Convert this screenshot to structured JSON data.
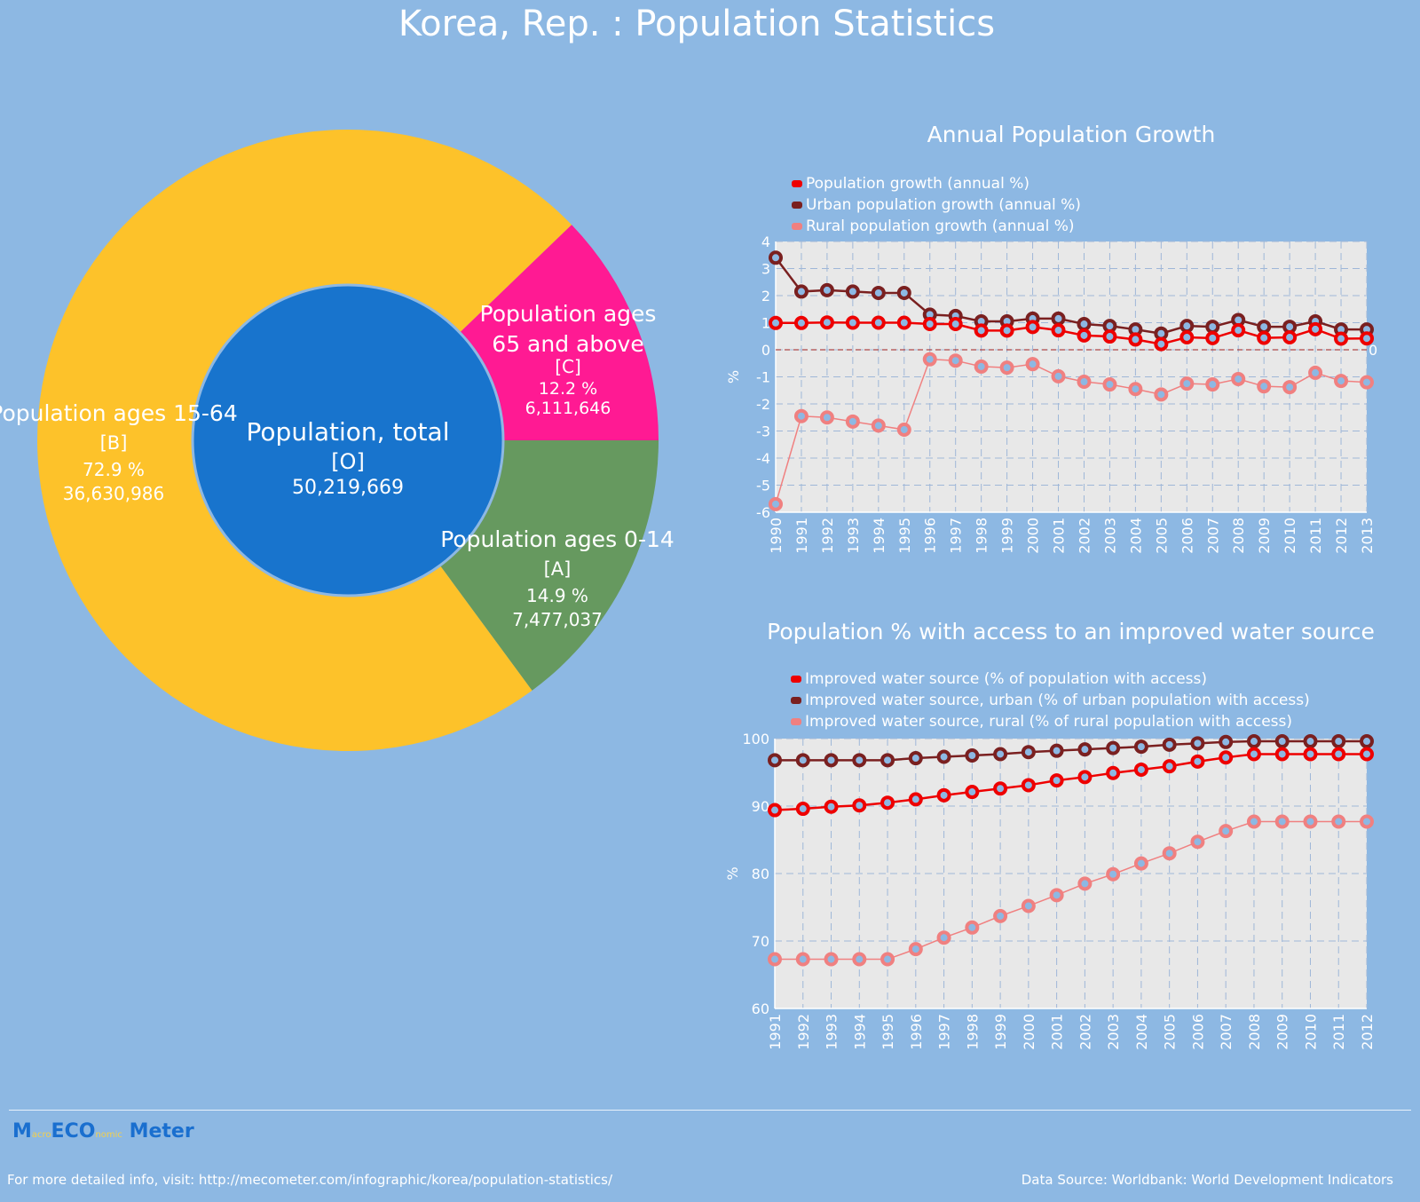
{
  "title": "Korea, Rep. : Population Statistics",
  "colors": {
    "background": "#8db8e3",
    "ages_15_64": "#fdc22a",
    "ages_65_above": "#ff1a93",
    "ages_0_14": "#66995f",
    "total": "#1874cd",
    "series1": "#ee0000",
    "series2": "#7a2020",
    "series3": "#f08080",
    "plot_bg": "#e8e8e8"
  },
  "chart_data": [
    {
      "type": "pie",
      "variant": "donut",
      "center": {
        "label": "Population, total",
        "code": "[O]",
        "value_text": "50,219,669",
        "value": 50219669
      },
      "slices": [
        {
          "label": "Population ages 0-14",
          "code": "[A]",
          "percent": 14.9,
          "percent_text": "14.9 %",
          "value_text": "7,477,037",
          "value": 7477037
        },
        {
          "label": "Population ages 15-64",
          "code": "[B]",
          "percent": 72.9,
          "percent_text": "72.9 %",
          "value_text": "36,630,986",
          "value": 36630986
        },
        {
          "label_lines": [
            "Population ages",
            "65 and above"
          ],
          "code": "[C]",
          "percent": 12.2,
          "percent_text": "12.2 %",
          "value_text": "6,111,646",
          "value": 6111646
        }
      ]
    },
    {
      "type": "line",
      "title": "Annual Population Growth",
      "ylabel": "%",
      "ylim": [
        -6,
        4
      ],
      "yticks": [
        "4",
        "3",
        "2",
        "1",
        "0",
        "-1",
        "-2",
        "-3",
        "-4",
        "-5",
        "-6"
      ],
      "zero_label": "0",
      "legend_placement": "top-left",
      "grid": true,
      "x": [
        "1990",
        "1991",
        "1992",
        "1993",
        "1994",
        "1995",
        "1996",
        "1997",
        "1998",
        "1999",
        "2000",
        "2001",
        "2002",
        "2003",
        "2004",
        "2005",
        "2006",
        "2007",
        "2008",
        "2009",
        "2010",
        "2011",
        "2012",
        "2013"
      ],
      "series": [
        {
          "name": "Population growth (annual %)",
          "values": [
            0.99,
            0.99,
            1.01,
            1.0,
            1.0,
            1.0,
            0.95,
            0.95,
            0.71,
            0.71,
            0.84,
            0.72,
            0.53,
            0.49,
            0.38,
            0.21,
            0.46,
            0.43,
            0.72,
            0.44,
            0.46,
            0.76,
            0.41,
            0.42
          ]
        },
        {
          "name": "Urban population growth (annual %)",
          "values": [
            3.4,
            2.15,
            2.2,
            2.15,
            2.1,
            2.1,
            1.3,
            1.25,
            1.05,
            1.05,
            1.15,
            1.15,
            0.95,
            0.88,
            0.75,
            0.6,
            0.88,
            0.85,
            1.1,
            0.85,
            0.85,
            1.05,
            0.75,
            0.75
          ]
        },
        {
          "name": "Rural population growth (annual %)",
          "values": [
            -5.7,
            -2.45,
            -2.5,
            -2.65,
            -2.8,
            -2.95,
            -0.35,
            -0.4,
            -0.62,
            -0.66,
            -0.53,
            -0.98,
            -1.18,
            -1.28,
            -1.45,
            -1.65,
            -1.25,
            -1.28,
            -1.08,
            -1.35,
            -1.38,
            -0.85,
            -1.15,
            -1.2
          ]
        }
      ]
    },
    {
      "type": "line",
      "title": "Population % with access to an improved water source",
      "ylabel": "%",
      "ylim": [
        60,
        100
      ],
      "yticks": [
        "100",
        "90",
        "80",
        "70",
        "60"
      ],
      "legend_placement": "top-left",
      "grid": true,
      "x": [
        "1991",
        "1992",
        "1993",
        "1994",
        "1995",
        "1996",
        "1997",
        "1998",
        "1999",
        "2000",
        "2001",
        "2002",
        "2003",
        "2004",
        "2005",
        "2006",
        "2007",
        "2008",
        "2009",
        "2010",
        "2011",
        "2012"
      ],
      "series": [
        {
          "name": "Improved water source (% of population with access)",
          "values": [
            89.4,
            89.6,
            89.9,
            90.1,
            90.5,
            91.0,
            91.6,
            92.1,
            92.6,
            93.1,
            93.8,
            94.3,
            94.9,
            95.4,
            95.9,
            96.6,
            97.2,
            97.7,
            97.7,
            97.7,
            97.7,
            97.7
          ]
        },
        {
          "name": "Improved water source, urban (% of urban population with access)",
          "values": [
            96.8,
            96.8,
            96.8,
            96.8,
            96.8,
            97.1,
            97.3,
            97.5,
            97.7,
            98.0,
            98.2,
            98.4,
            98.6,
            98.8,
            99.1,
            99.3,
            99.5,
            99.6,
            99.6,
            99.6,
            99.6,
            99.6
          ]
        },
        {
          "name": "Improved water source, rural (% of rural population with access)",
          "values": [
            67.3,
            67.3,
            67.3,
            67.3,
            67.3,
            68.8,
            70.5,
            72.0,
            73.7,
            75.2,
            76.8,
            78.5,
            79.9,
            81.5,
            83.0,
            84.7,
            86.3,
            87.7,
            87.7,
            87.7,
            87.7,
            87.7
          ]
        }
      ]
    }
  ],
  "footer": {
    "logo": "MacroECOnomic Meter",
    "logo_parts": [
      "M",
      "acro",
      "ECO",
      "nomic",
      "Meter"
    ],
    "info": "For more detailed info, visit: http://mecometer.com/infographic/korea/population-statistics/",
    "source": "Data Source: Worldbank: World Development Indicators"
  }
}
